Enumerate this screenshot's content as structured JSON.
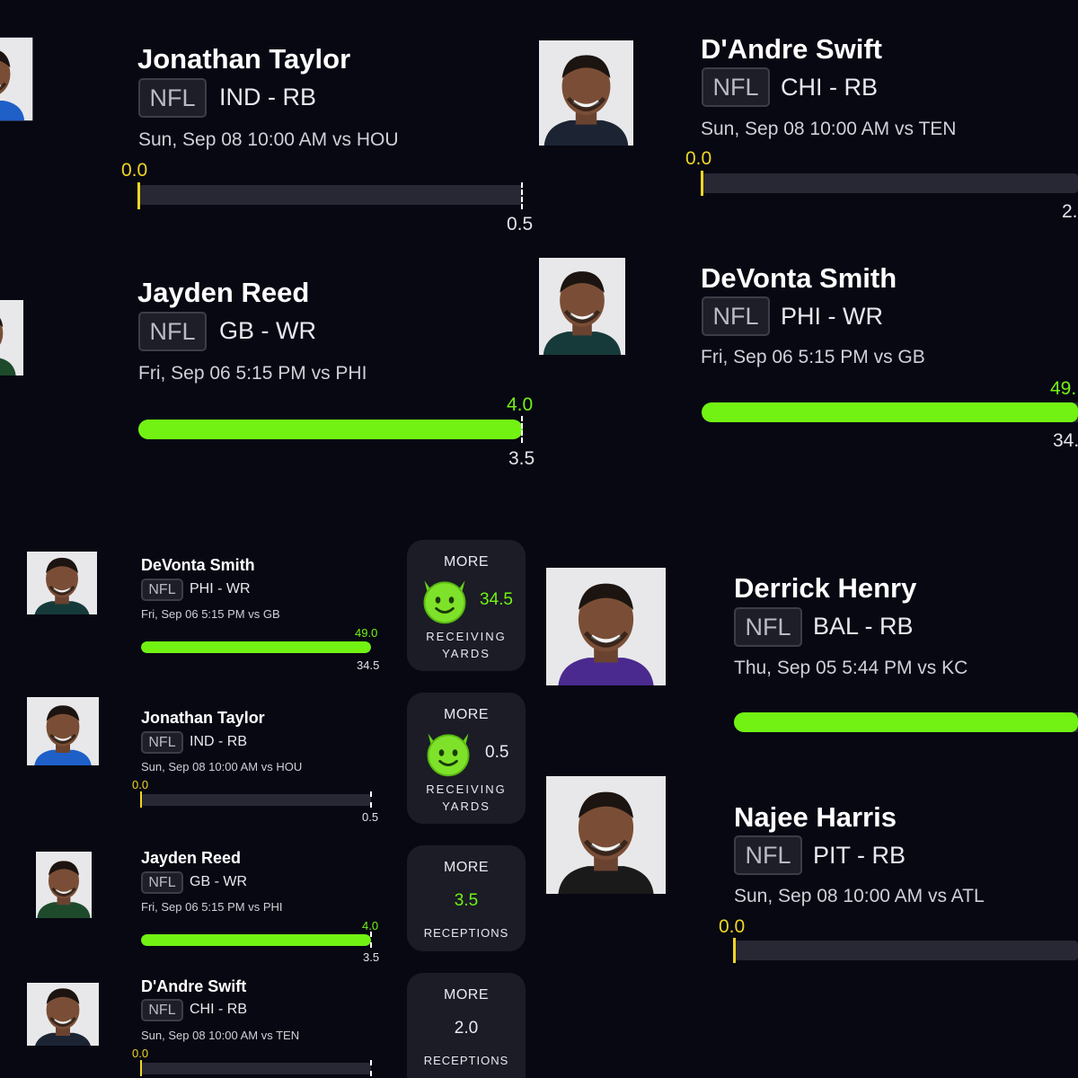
{
  "league": "NFL",
  "colors": {
    "background": "#070812",
    "accent_green": "#72f213",
    "tick_yellow": "#f0d625",
    "card_bg": "#1b1c26"
  },
  "icons": {
    "pick_badge": "green-devil-emoji"
  },
  "top_cards": {
    "jonathan_taylor": {
      "name": "Jonathan Taylor",
      "team_pos": "IND - RB",
      "game": "Sun, Sep 08 10:00 AM  vs HOU",
      "actual": "0.0",
      "line": "0.5",
      "progress": 0.0
    },
    "dandre_swift": {
      "name": "D'Andre Swift",
      "team_pos": "CHI - RB",
      "game": "Sun, Sep 08 10:00 AM  vs TEN",
      "actual": "0.0",
      "line": "2.",
      "progress": 0.0
    },
    "jayden_reed": {
      "name": "Jayden Reed",
      "team_pos": "GB - WR",
      "game": "Fri, Sep 06  5:15 PM  vs PHI",
      "actual": "4.0",
      "line": "3.5",
      "progress": 1.0
    },
    "devonta_smith": {
      "name": "DeVonta Smith",
      "team_pos": "PHI - WR",
      "game": "Fri, Sep 06  5:15 PM  vs GB",
      "actual": "49.",
      "line": "34.",
      "progress": 1.0
    },
    "derrick_henry": {
      "name": "Derrick Henry",
      "team_pos": "BAL - RB",
      "game": "Thu, Sep 05  5:44 PM  vs KC",
      "progress": 1.0
    },
    "najee_harris": {
      "name": "Najee Harris",
      "team_pos": "PIT - RB",
      "game": "Sun, Sep 08 10:00 AM  vs ATL",
      "actual": "0.0",
      "progress": 0.0
    }
  },
  "picks": [
    {
      "name": "DeVonta Smith",
      "team_pos": "PHI - WR",
      "game": "Fri, Sep 06  5:15 PM  vs GB",
      "actual": "49.0",
      "line": "34.5",
      "progress": 1.0,
      "direction": "MORE",
      "line_value": "34.5",
      "stat_line1": "RECEIVING",
      "stat_line2": "YARDS"
    },
    {
      "name": "Jonathan Taylor",
      "team_pos": "IND - RB",
      "game": "Sun, Sep 08 10:00 AM  vs HOU",
      "actual": "0.0",
      "line": "0.5",
      "progress": 0.0,
      "direction": "MORE",
      "line_value": "0.5",
      "stat_line1": "RECEIVING",
      "stat_line2": "YARDS"
    },
    {
      "name": "Jayden Reed",
      "team_pos": "GB - WR",
      "game": "Fri, Sep 06  5:15 PM  vs PHI",
      "actual": "4.0",
      "line": "3.5",
      "progress": 1.0,
      "direction": "MORE",
      "line_value": "3.5",
      "stat_line1": "RECEPTIONS"
    },
    {
      "name": "D'Andre Swift",
      "team_pos": "CHI - RB",
      "game": "Sun, Sep 08 10:00 AM  vs TEN",
      "actual": "0.0",
      "progress": 0.0,
      "direction": "MORE",
      "line_value": "2.0",
      "stat_line1": "RECEPTIONS"
    }
  ]
}
